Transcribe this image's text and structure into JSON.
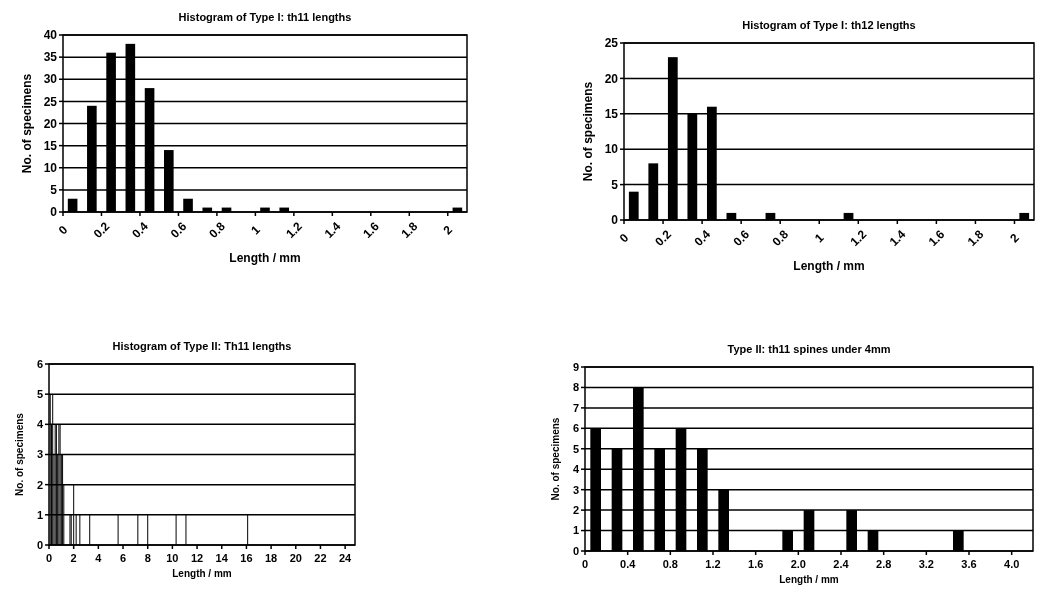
{
  "chart_data": [
    {
      "type": "histogram",
      "title": "Histogram of Type I: th11 lengths",
      "xlabel": "Length / mm",
      "ylabel": "No. of specimens",
      "bins": [
        0,
        0.1,
        0.2,
        0.3,
        0.4,
        0.5,
        0.6,
        0.7,
        0.8,
        0.9,
        1,
        1.1,
        1.2,
        1.3,
        1.4,
        1.5,
        1.6,
        1.7,
        1.8,
        1.9,
        2,
        2.1
      ],
      "values": [
        3,
        24,
        36,
        38,
        28,
        14,
        3,
        1,
        1,
        0,
        1,
        1,
        0,
        0,
        0,
        0,
        0,
        0,
        0,
        0,
        1
      ],
      "color": "#000000",
      "xlim": [
        0,
        2.1
      ],
      "xticks": [
        0,
        0.2,
        0.4,
        0.6,
        0.8,
        1,
        1.2,
        1.4,
        1.6,
        1.8,
        2
      ],
      "ylim": [
        0,
        40
      ],
      "yticks": [
        0,
        5,
        10,
        15,
        20,
        25,
        30,
        35,
        40
      ],
      "grid": "y"
    },
    {
      "type": "histogram",
      "title": "Histogram of Type I: th12 lengths",
      "xlabel": "Length / mm",
      "ylabel": "No. of specimens",
      "bins": [
        0,
        0.1,
        0.2,
        0.3,
        0.4,
        0.5,
        0.6,
        0.7,
        0.8,
        0.9,
        1,
        1.1,
        1.2,
        1.3,
        1.4,
        1.5,
        1.6,
        1.7,
        1.8,
        1.9,
        2,
        2.1
      ],
      "values": [
        4,
        8,
        23,
        15,
        16,
        1,
        0,
        1,
        0,
        0,
        0,
        1,
        0,
        0,
        0,
        0,
        0,
        0,
        0,
        0,
        1
      ],
      "color": "#000000",
      "xlim": [
        0,
        2.1
      ],
      "xticks": [
        0,
        0.2,
        0.4,
        0.6,
        0.8,
        1,
        1.2,
        1.4,
        1.6,
        1.8,
        2
      ],
      "ylim": [
        0,
        25
      ],
      "yticks": [
        0,
        5,
        10,
        15,
        20,
        25
      ],
      "grid": "y"
    },
    {
      "type": "bar",
      "title": "Histogram of Type II: Th11 lengths",
      "xlabel": "Length / mm",
      "ylabel": "No. of specimens",
      "x": [
        0.1,
        0.2,
        0.3,
        0.4,
        0.5,
        0.6,
        0.7,
        0.8,
        0.9,
        1.0,
        1.1,
        1.2,
        1.7,
        1.8,
        2.0,
        2.2,
        2.5,
        3.3,
        5.6,
        7.2,
        8.0,
        10.3,
        11.1,
        16.1
      ],
      "values": [
        5,
        4,
        5,
        3,
        4,
        4,
        3,
        4,
        4,
        3,
        3,
        2,
        1,
        1,
        2,
        1,
        1,
        1,
        1,
        1,
        1,
        1,
        1,
        1
      ],
      "color": "#000000",
      "xlim": [
        0,
        24.8
      ],
      "xticks": [
        0,
        2,
        4,
        6,
        8,
        10,
        12,
        14,
        16,
        18,
        20,
        22,
        24
      ],
      "ylim": [
        0,
        6
      ],
      "yticks": [
        0,
        1,
        2,
        3,
        4,
        5,
        6
      ],
      "grid": "y"
    },
    {
      "type": "histogram",
      "title": "Type II: th11 spines under 4mm",
      "xlabel": "Length / mm",
      "ylabel": "No. of specimens",
      "bins": [
        0,
        0.2,
        0.4,
        0.6,
        0.8,
        1.0,
        1.2,
        1.4,
        1.6,
        1.8,
        2.0,
        2.2,
        2.4,
        2.6,
        2.8,
        3.0,
        3.2,
        3.4,
        3.6,
        3.8,
        4.0,
        4.2
      ],
      "values": [
        6,
        5,
        8,
        5,
        6,
        5,
        3,
        0,
        0,
        1,
        2,
        0,
        2,
        1,
        0,
        0,
        0,
        1,
        0,
        0,
        0
      ],
      "color": "#000000",
      "xlim": [
        0,
        4.2
      ],
      "xticks": [
        {
          "value": 0,
          "label": "0"
        },
        {
          "value": 0.4,
          "label": "0.4"
        },
        {
          "value": 0.8,
          "label": "0.8"
        },
        {
          "value": 1.2,
          "label": "1.2"
        },
        {
          "value": 1.6,
          "label": "1.6"
        },
        {
          "value": 2.0,
          "label": "2.0"
        },
        {
          "value": 2.4,
          "label": "2.4"
        },
        {
          "value": 2.8,
          "label": "2.8"
        },
        {
          "value": 3.2,
          "label": "3.2"
        },
        {
          "value": 3.6,
          "label": "3.6"
        },
        {
          "value": 4.0,
          "label": "4.0"
        }
      ],
      "ylim": [
        0,
        9
      ],
      "yticks": [
        0,
        1,
        2,
        3,
        4,
        5,
        6,
        7,
        8,
        9
      ],
      "grid": "y"
    }
  ]
}
